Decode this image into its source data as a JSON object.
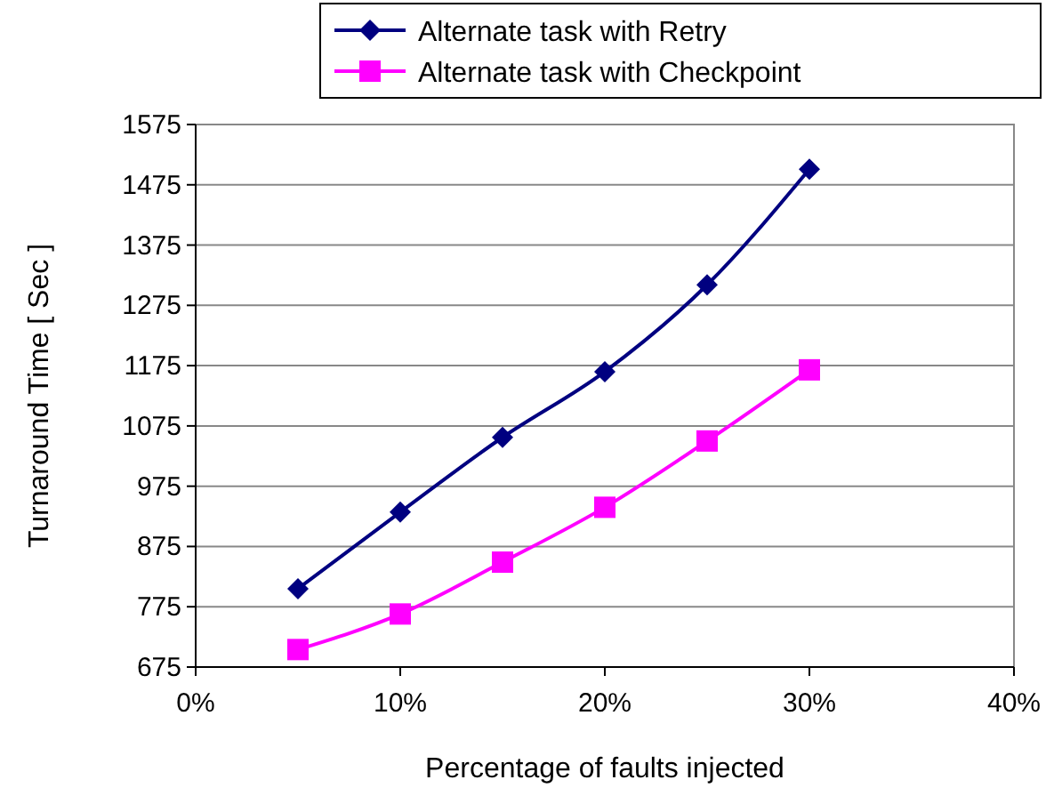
{
  "chart_data": {
    "type": "line",
    "xlabel": "Percentage of faults injected",
    "ylabel": "Turnaround Time [ Sec ]",
    "x": [
      5,
      10,
      15,
      20,
      25,
      30
    ],
    "series": [
      {
        "name": "Alternate task with Retry",
        "color": "#000080",
        "marker": "diamond",
        "values": [
          805,
          932,
          1056,
          1165,
          1309,
          1501
        ]
      },
      {
        "name": "Alternate task with Checkpoint",
        "color": "#ff00ff",
        "marker": "square",
        "values": [
          704,
          763,
          849,
          940,
          1050,
          1168
        ]
      }
    ],
    "xlim": [
      0,
      40
    ],
    "xticks": [
      {
        "value": 0,
        "label": "0%"
      },
      {
        "value": 10,
        "label": "10%"
      },
      {
        "value": 20,
        "label": "20%"
      },
      {
        "value": 30,
        "label": "30%"
      },
      {
        "value": 40,
        "label": "40%"
      }
    ],
    "ylim": [
      675,
      1575
    ],
    "yticks": [
      675,
      775,
      875,
      975,
      1075,
      1175,
      1275,
      1375,
      1475,
      1575
    ],
    "grid": "y",
    "legend": "top"
  }
}
